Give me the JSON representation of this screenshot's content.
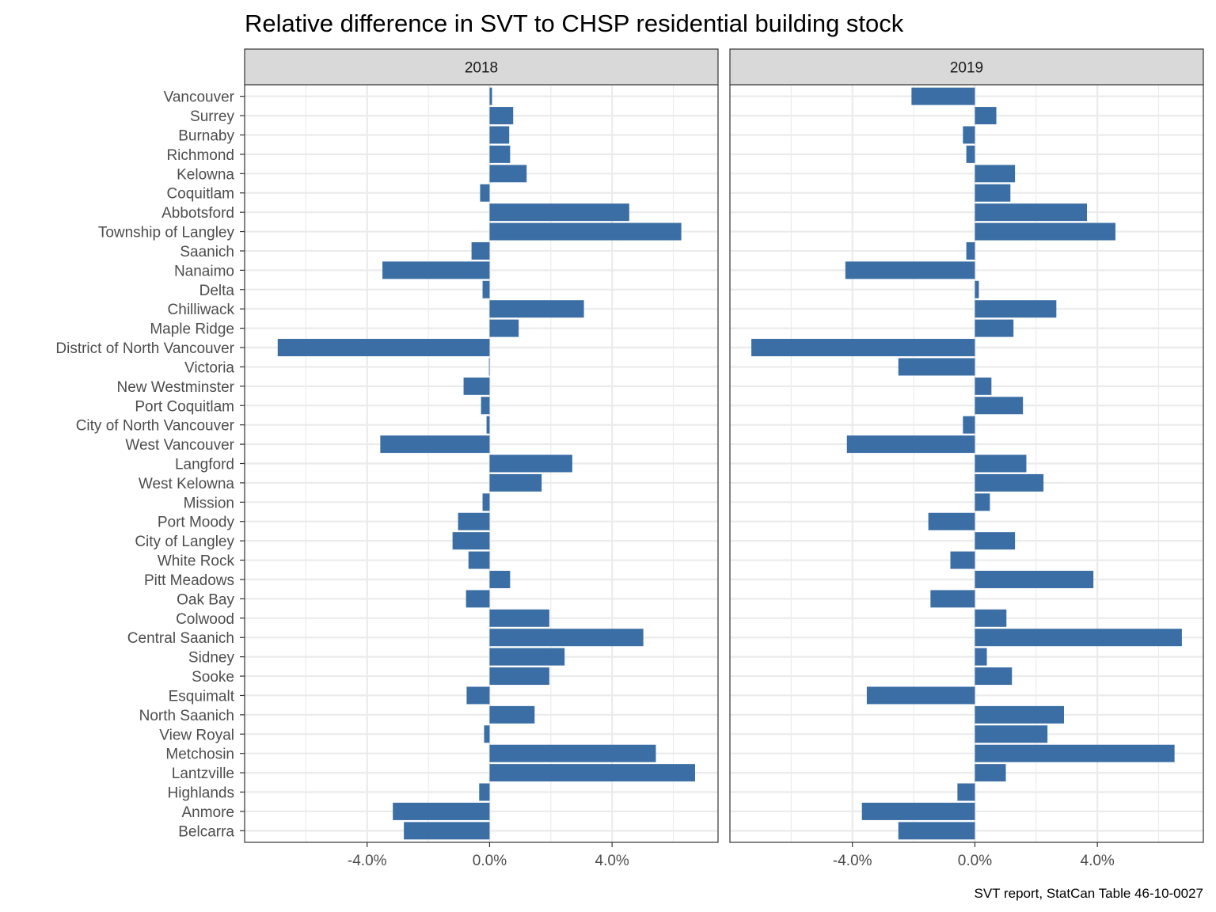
{
  "chart_data": {
    "type": "bar",
    "orientation": "horizontal",
    "title": "Relative difference in SVT to CHSP residential building stock",
    "caption": "SVT report, StatCan Table 46-10-0027",
    "xlabel": "",
    "ylabel": "",
    "xlim": [
      -8.0,
      7.46
    ],
    "x_ticks": [
      -4,
      0,
      4
    ],
    "x_tick_labels": [
      "-4.0%",
      "0.0%",
      "4.0%"
    ],
    "x_minor_grid": [
      -6,
      -2,
      2,
      6
    ],
    "grid": true,
    "bar_color": "#3a6ea5",
    "categories": [
      "Vancouver",
      "Surrey",
      "Burnaby",
      "Richmond",
      "Kelowna",
      "Coquitlam",
      "Abbotsford",
      "Township of Langley",
      "Saanich",
      "Nanaimo",
      "Delta",
      "Chilliwack",
      "Maple Ridge",
      "District of North Vancouver",
      "Victoria",
      "New Westminster",
      "Port Coquitlam",
      "City of North Vancouver",
      "West Vancouver",
      "Langford",
      "West Kelowna",
      "Mission",
      "Port Moody",
      "City of Langley",
      "White Rock",
      "Pitt Meadows",
      "Oak Bay",
      "Colwood",
      "Central Saanich",
      "Sidney",
      "Sooke",
      "Esquimalt",
      "North Saanich",
      "View Royal",
      "Metchosin",
      "Lantzville",
      "Highlands",
      "Anmore",
      "Belcarra"
    ],
    "panels": [
      {
        "name": "2018",
        "values": [
          0.08,
          0.77,
          0.64,
          0.67,
          1.21,
          -0.31,
          4.56,
          6.26,
          -0.59,
          -3.5,
          -0.23,
          3.08,
          0.95,
          -6.92,
          -0.02,
          -0.85,
          -0.28,
          -0.1,
          -3.57,
          2.7,
          1.7,
          -0.23,
          -1.03,
          -1.21,
          -0.69,
          0.67,
          -0.77,
          1.95,
          5.02,
          2.45,
          1.95,
          -0.75,
          1.47,
          -0.18,
          5.43,
          6.71,
          -0.34,
          -3.16,
          -2.8
        ]
      },
      {
        "name": "2019",
        "values": [
          -2.07,
          0.7,
          -0.39,
          -0.28,
          1.31,
          1.16,
          3.66,
          4.59,
          -0.28,
          -4.23,
          0.13,
          2.66,
          1.26,
          -7.3,
          -2.5,
          0.54,
          1.57,
          -0.39,
          -4.18,
          1.68,
          2.24,
          0.49,
          -1.52,
          1.31,
          -0.8,
          3.87,
          -1.45,
          1.03,
          6.76,
          0.39,
          1.21,
          -3.53,
          2.91,
          2.37,
          6.52,
          1.01,
          -0.57,
          -3.69,
          -2.5
        ]
      }
    ]
  }
}
